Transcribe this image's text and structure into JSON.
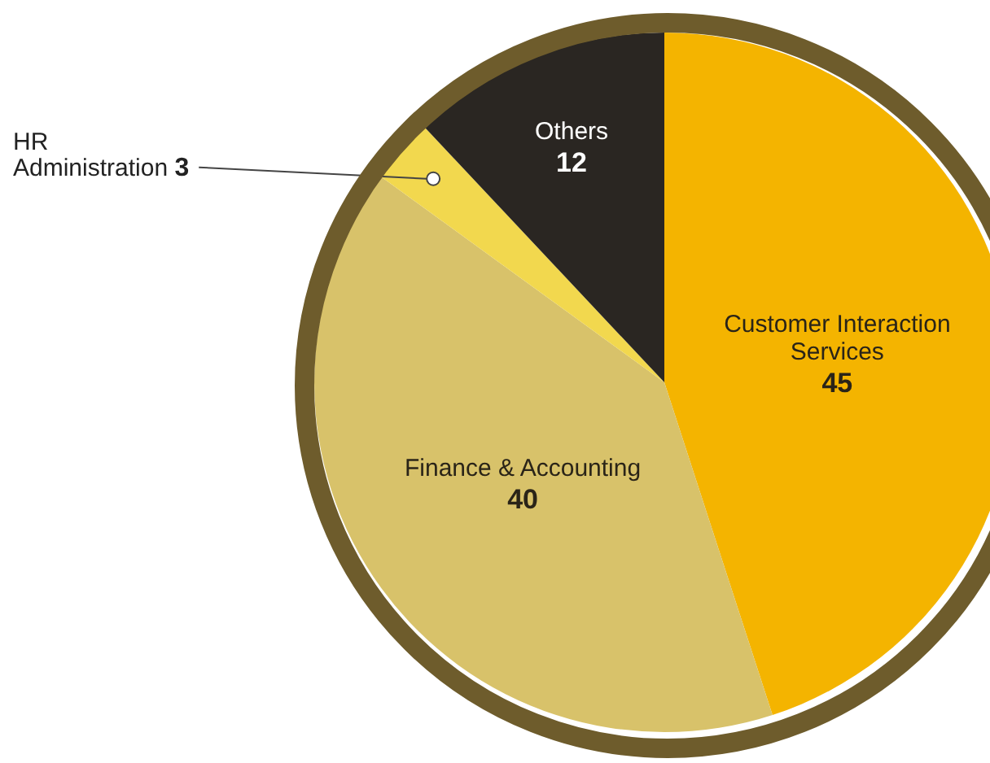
{
  "chart_data": {
    "type": "pie",
    "categories": [
      "Customer Interaction Services",
      "Finance & Accounting",
      "HR Administration",
      "Others"
    ],
    "values": [
      45,
      40,
      3,
      12
    ],
    "colors": [
      "#f4b400",
      "#d8c26a",
      "#f2d84e",
      "#2a2622"
    ],
    "data_labels": true,
    "legend": false
  }
}
